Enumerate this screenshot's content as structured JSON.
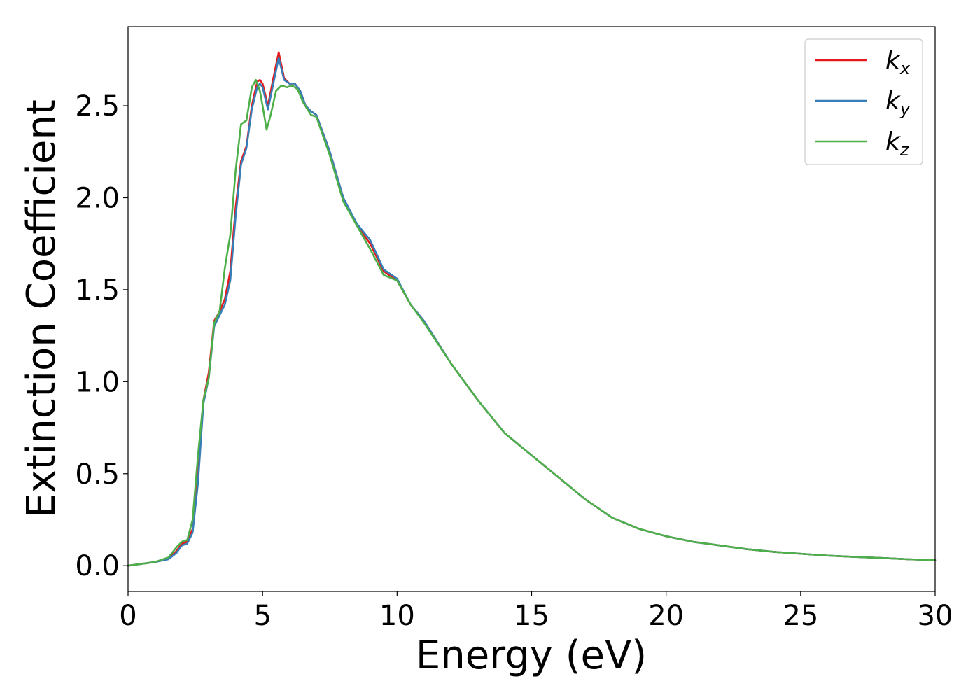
{
  "chart_data": {
    "type": "line",
    "title": "",
    "xlabel": "Energy (eV)",
    "ylabel": "Extinction Coefficient",
    "xlim": [
      0,
      30
    ],
    "ylim": [
      -0.14,
      2.93
    ],
    "xticks": [
      0,
      5,
      10,
      15,
      20,
      25,
      30
    ],
    "xtick_labels": [
      "0",
      "5",
      "10",
      "15",
      "20",
      "25",
      "30"
    ],
    "yticks": [
      0.0,
      0.5,
      1.0,
      1.5,
      2.0,
      2.5
    ],
    "ytick_labels": [
      "0.0",
      "0.5",
      "1.0",
      "1.5",
      "2.0",
      "2.5"
    ],
    "grid": false,
    "legend_position": "top-right",
    "series": [
      {
        "name": "k_x",
        "label_base": "k",
        "label_sub": "x",
        "color": "#e41a1c",
        "x": [
          0,
          0.5,
          1.0,
          1.5,
          1.8,
          2.0,
          2.2,
          2.4,
          2.6,
          2.8,
          3.0,
          3.2,
          3.4,
          3.6,
          3.8,
          4.0,
          4.2,
          4.4,
          4.6,
          4.8,
          4.9,
          5.0,
          5.2,
          5.4,
          5.6,
          5.8,
          6.0,
          6.2,
          6.4,
          6.6,
          6.8,
          7.0,
          7.5,
          8.0,
          8.5,
          9.0,
          9.5,
          10.0,
          10.5,
          11.0,
          12.0,
          13.0,
          14.0,
          15.0,
          16.0,
          17.0,
          18.0,
          19.0,
          20.0,
          21.0,
          22.0,
          23.0,
          24.0,
          25.0,
          26.0,
          27.0,
          28.0,
          29.0,
          30.0
        ],
        "y": [
          0.0,
          0.01,
          0.02,
          0.04,
          0.08,
          0.12,
          0.13,
          0.2,
          0.5,
          0.9,
          1.05,
          1.33,
          1.38,
          1.45,
          1.6,
          1.95,
          2.2,
          2.28,
          2.5,
          2.63,
          2.64,
          2.62,
          2.5,
          2.65,
          2.79,
          2.65,
          2.62,
          2.62,
          2.58,
          2.5,
          2.47,
          2.45,
          2.25,
          2.0,
          1.85,
          1.75,
          1.6,
          1.55,
          1.42,
          1.33,
          1.1,
          0.9,
          0.72,
          0.6,
          0.48,
          0.36,
          0.26,
          0.2,
          0.16,
          0.13,
          0.11,
          0.09,
          0.075,
          0.065,
          0.055,
          0.048,
          0.042,
          0.035,
          0.03
        ]
      },
      {
        "name": "k_y",
        "label_base": "k",
        "label_sub": "y",
        "color": "#377eb8",
        "x": [
          0,
          0.5,
          1.0,
          1.5,
          1.8,
          2.0,
          2.2,
          2.4,
          2.6,
          2.8,
          3.0,
          3.2,
          3.4,
          3.6,
          3.8,
          4.0,
          4.2,
          4.4,
          4.6,
          4.8,
          4.9,
          5.0,
          5.2,
          5.4,
          5.6,
          5.8,
          6.0,
          6.2,
          6.4,
          6.6,
          6.8,
          7.0,
          7.5,
          8.0,
          8.5,
          9.0,
          9.5,
          10.0,
          10.5,
          11.0,
          12.0,
          13.0,
          14.0,
          15.0,
          16.0,
          17.0,
          18.0,
          19.0,
          20.0,
          21.0,
          22.0,
          23.0,
          24.0,
          25.0,
          26.0,
          27.0,
          28.0,
          29.0,
          30.0
        ],
        "y": [
          0.0,
          0.01,
          0.02,
          0.035,
          0.07,
          0.11,
          0.12,
          0.18,
          0.45,
          0.88,
          1.02,
          1.3,
          1.36,
          1.42,
          1.55,
          1.9,
          2.18,
          2.27,
          2.48,
          2.6,
          2.62,
          2.6,
          2.48,
          2.62,
          2.76,
          2.64,
          2.62,
          2.62,
          2.58,
          2.5,
          2.47,
          2.45,
          2.25,
          2.0,
          1.86,
          1.77,
          1.61,
          1.56,
          1.42,
          1.33,
          1.1,
          0.9,
          0.72,
          0.6,
          0.48,
          0.36,
          0.26,
          0.2,
          0.16,
          0.13,
          0.11,
          0.09,
          0.075,
          0.065,
          0.055,
          0.048,
          0.042,
          0.035,
          0.03
        ]
      },
      {
        "name": "k_z",
        "label_base": "k",
        "label_sub": "z",
        "color": "#4daf4a",
        "x": [
          0,
          0.5,
          1.0,
          1.5,
          1.8,
          2.0,
          2.2,
          2.4,
          2.6,
          2.8,
          3.0,
          3.2,
          3.4,
          3.6,
          3.8,
          4.0,
          4.2,
          4.4,
          4.6,
          4.75,
          4.9,
          5.0,
          5.15,
          5.3,
          5.5,
          5.7,
          5.9,
          6.1,
          6.3,
          6.5,
          6.8,
          7.0,
          7.5,
          8.0,
          8.5,
          9.0,
          9.5,
          10.0,
          10.5,
          11.0,
          12.0,
          13.0,
          14.0,
          15.0,
          16.0,
          17.0,
          18.0,
          19.0,
          20.0,
          21.0,
          22.0,
          23.0,
          24.0,
          25.0,
          26.0,
          27.0,
          28.0,
          29.0,
          30.0
        ],
        "y": [
          0.0,
          0.01,
          0.02,
          0.045,
          0.1,
          0.13,
          0.14,
          0.25,
          0.6,
          0.9,
          1.02,
          1.32,
          1.38,
          1.62,
          1.8,
          2.15,
          2.4,
          2.42,
          2.6,
          2.64,
          2.58,
          2.5,
          2.37,
          2.45,
          2.58,
          2.61,
          2.6,
          2.61,
          2.59,
          2.52,
          2.45,
          2.44,
          2.23,
          1.98,
          1.85,
          1.72,
          1.58,
          1.55,
          1.42,
          1.32,
          1.1,
          0.9,
          0.72,
          0.6,
          0.48,
          0.36,
          0.26,
          0.2,
          0.16,
          0.13,
          0.11,
          0.09,
          0.075,
          0.065,
          0.055,
          0.048,
          0.042,
          0.035,
          0.03
        ]
      }
    ]
  }
}
